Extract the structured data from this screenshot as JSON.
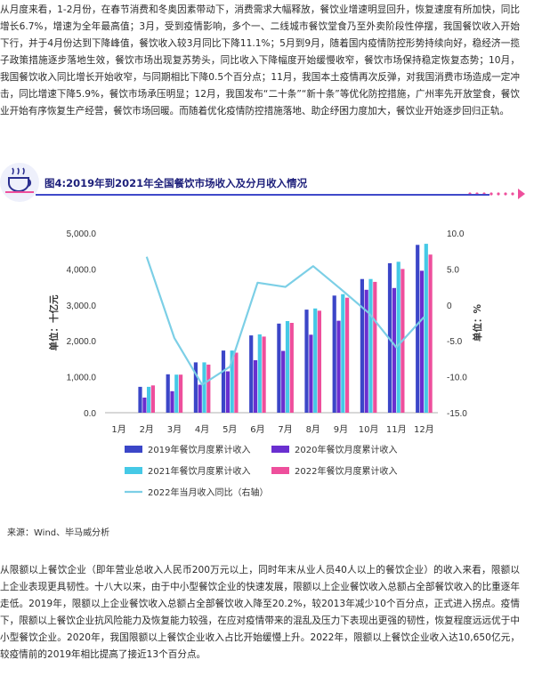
{
  "paragraph_1": "从月度来看，1-2月份，在春节消费和冬奥因素带动下，消费需求大幅释放，餐饮业增速明显回升，恢复速度有所加快，同比增长6.7%，增速为全年最高值；3月，受到疫情影响，多个一、二线城市餐饮堂食乃至外卖阶段性停摆，我国餐饮收入开始下行，并于4月份达到下降峰值，餐饮收入较3月同比下降11.1%；5月到9月，随着国内疫情防控形势持续向好，稳经济一揽子政策措施逐步落地生效，餐饮市场出现复苏势头，同比收入下降幅度开始缓慢收窄，餐饮市场保持稳定恢复态势；10月，我国餐饮收入同比增长开始收窄，与同期相比下降0.5个百分点；11月，我国本土疫情再次反弹，对我国消费市场造成一定冲击，同比增速下降5.9%，餐饮市场承压明显；12月，我国发布“二十条”“新十条”等优化防控措施，广州率先开放堂食，餐饮业开始有序恢复生产经营，餐饮市场回暖。而随着优化疫情防控措施落地、助企纾困力度加大，餐饮业开始逐步回归正轨。",
  "figure_title": "图4:2019年到2021年全国餐饮市场收入及分月收入情况",
  "source": "来源：Wind、毕马威分析",
  "paragraph_2": "从限额以上餐饮企业（即年营业总收入人民币200万元以上，同时年末从业人员40人以上的餐饮企业）的收入来看，限额以上企业表现更具韧性。十八大以来，由于中小型餐饮企业的快速发展，限额以上企业餐饮收入总额占全部餐饮收入的比重逐年走低。2019年，限额以上企业餐饮收入总额占全部餐饮收入降至20.2%，较2013年减少10个百分点，正式进入拐点。疫情下，限额以上餐饮企业抗风险能力及恢复能力较强，在应对疫情带来的混乱及压力下表现出更强的韧性，恢复程度远远优于中小型餐饮企业。2020年，我国限额以上餐饮企业收入占比开始缓慢上升。2022年，限额以上餐饮企业收入达10,650亿元，较疫情前的2019年相比提高了接近13个百分点。",
  "colors": {
    "s2019": "#3b46c8",
    "s2020": "#6a2fd0",
    "s2021": "#45c9e6",
    "s2022": "#ee4f9c",
    "line": "#7ccfe6",
    "title": "#1d1f7a"
  },
  "chart_data": {
    "type": "bar",
    "categories": [
      "1月",
      "2月",
      "3月",
      "4月",
      "5月",
      "6月",
      "7月",
      "8月",
      "9月",
      "10月",
      "11月",
      "12月"
    ],
    "ylim": [
      0,
      5000
    ],
    "yticks": [
      "0.0",
      "1,000.0",
      "2,000.0",
      "3,000.0",
      "4,000.0",
      "5,000.0"
    ],
    "ylabel": "单位：十亿元",
    "y2lim": [
      -15,
      10
    ],
    "y2ticks": [
      "-15.0",
      "-10.0",
      "-5.0",
      "0",
      "5.0",
      "10.0"
    ],
    "y2label": "单位：%",
    "series": [
      {
        "name": "2019年餐饮月度累计收入",
        "values": [
          null,
          720,
          1070,
          1400,
          1730,
          2150,
          2480,
          2870,
          3260,
          3720,
          4160,
          4670
        ]
      },
      {
        "name": "2020年餐饮月度累计收入",
        "values": [
          null,
          420,
          600,
          780,
          1150,
          1460,
          1720,
          2170,
          2560,
          3420,
          3470,
          3950
        ]
      },
      {
        "name": "2021年餐饮月度累计收入",
        "values": [
          null,
          720,
          1060,
          1400,
          1730,
          2180,
          2550,
          2900,
          3300,
          3720,
          4200,
          4700
        ]
      },
      {
        "name": "2022年餐饮月度累计收入",
        "values": [
          null,
          760,
          1060,
          1340,
          1670,
          2120,
          2500,
          2840,
          3200,
          3640,
          4000,
          4400
        ]
      }
    ],
    "line_series": {
      "name": "2022年当月收入同比（右轴）",
      "axis": "right",
      "values": [
        null,
        6.7,
        -4.6,
        -11.1,
        -8.6,
        3.1,
        2.5,
        5.4,
        2.2,
        -1.1,
        -5.9,
        -1.7
      ]
    },
    "legend_position": "bottom",
    "grid": false
  }
}
